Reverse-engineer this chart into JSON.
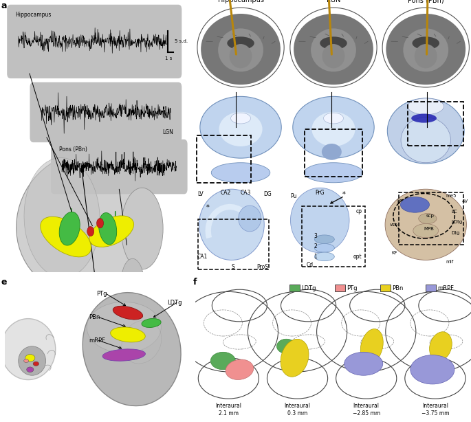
{
  "panel_label_fontsize": 9,
  "panel_label_fontweight": "bold",
  "title_b": "Hippocampus",
  "title_c": "LGN",
  "title_d": "Pons (PBn)",
  "scale_bar_text_v": "5 s.d.",
  "scale_bar_text_h": "1 s",
  "legend_items": [
    "LDTg",
    "PTg",
    "PBn",
    "mRPF"
  ],
  "legend_colors": [
    "#5aaa5a",
    "#f09090",
    "#e8d020",
    "#9898d8"
  ],
  "interaural_labels": [
    "Interaural\n2.1 mm",
    "Interaural\n0.3 mm",
    "Interaural\n−2.85 mm",
    "Interaural\n−3.75 mm"
  ],
  "bg_color": "#ffffff",
  "signal_bg": "#c0c0c0",
  "electrode_color": "#b8860b",
  "histo_bg_b": "#d8e4f0",
  "histo_bg_c": "#ccdaf0",
  "histo_bg_d": "#c8d8e8",
  "pbn_stain_color": "#2020b0",
  "green_struct": "#44bb44",
  "yellow_struct": "#eeee00",
  "red_struct": "#cc2222",
  "purple_struct": "#aa44aa"
}
